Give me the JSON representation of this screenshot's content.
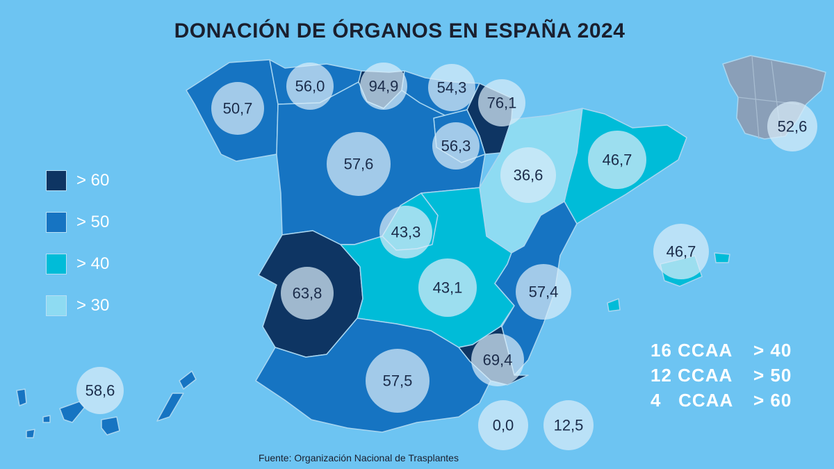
{
  "title": "DONACIÓN DE ÓRGANOS EN ESPAÑA 2024",
  "source": "Fuente: Organización Nacional de Trasplantes",
  "colors": {
    "background": "#6dc4f2",
    "gt60": "#0e3563",
    "gt50": "#1674c2",
    "gt40": "#00bcd8",
    "gt30": "#8edbf2",
    "inset": "#8a9fb8"
  },
  "legend": [
    {
      "label": "> 60",
      "color": "#0e3563"
    },
    {
      "label": "> 50",
      "color": "#1674c2"
    },
    {
      "label": "> 40",
      "color": "#00bcd8"
    },
    {
      "label": "> 30",
      "color": "#8edbf2"
    }
  ],
  "regions": [
    {
      "id": "galicia",
      "value": "50,7",
      "tier": "gt50"
    },
    {
      "id": "asturias",
      "value": "56,0",
      "tier": "gt50"
    },
    {
      "id": "cantabria",
      "value": "94,9",
      "tier": "gt60"
    },
    {
      "id": "pais-vasco",
      "value": "54,3",
      "tier": "gt50"
    },
    {
      "id": "navarra",
      "value": "76,1",
      "tier": "gt60"
    },
    {
      "id": "la-rioja",
      "value": "56,3",
      "tier": "gt50"
    },
    {
      "id": "castilla-y-leon",
      "value": "57,6",
      "tier": "gt50"
    },
    {
      "id": "aragon",
      "value": "36,6",
      "tier": "gt30"
    },
    {
      "id": "cataluna",
      "value": "46,7",
      "tier": "gt40"
    },
    {
      "id": "madrid",
      "value": "43,3",
      "tier": "gt40"
    },
    {
      "id": "extremadura",
      "value": "63,8",
      "tier": "gt60"
    },
    {
      "id": "castilla-la-mancha",
      "value": "43,1",
      "tier": "gt40"
    },
    {
      "id": "comunidad-valenciana",
      "value": "57,4",
      "tier": "gt50"
    },
    {
      "id": "murcia",
      "value": "69,4",
      "tier": "gt60"
    },
    {
      "id": "andalucia",
      "value": "57,5",
      "tier": "gt50"
    },
    {
      "id": "baleares",
      "value": "46,7",
      "tier": "gt40"
    },
    {
      "id": "canarias",
      "value": "58,6",
      "tier": "gt50"
    },
    {
      "id": "ceuta",
      "value": "0,0",
      "tier": "none"
    },
    {
      "id": "melilla",
      "value": "12,5",
      "tier": "none"
    },
    {
      "id": "espana",
      "value": "52,6",
      "tier": "inset"
    }
  ],
  "summary": [
    {
      "count": "16 CCAA",
      "threshold": "> 40"
    },
    {
      "count": "12 CCAA",
      "threshold": "> 50"
    },
    {
      "count": "4   CCAA",
      "threshold": "> 60"
    }
  ]
}
